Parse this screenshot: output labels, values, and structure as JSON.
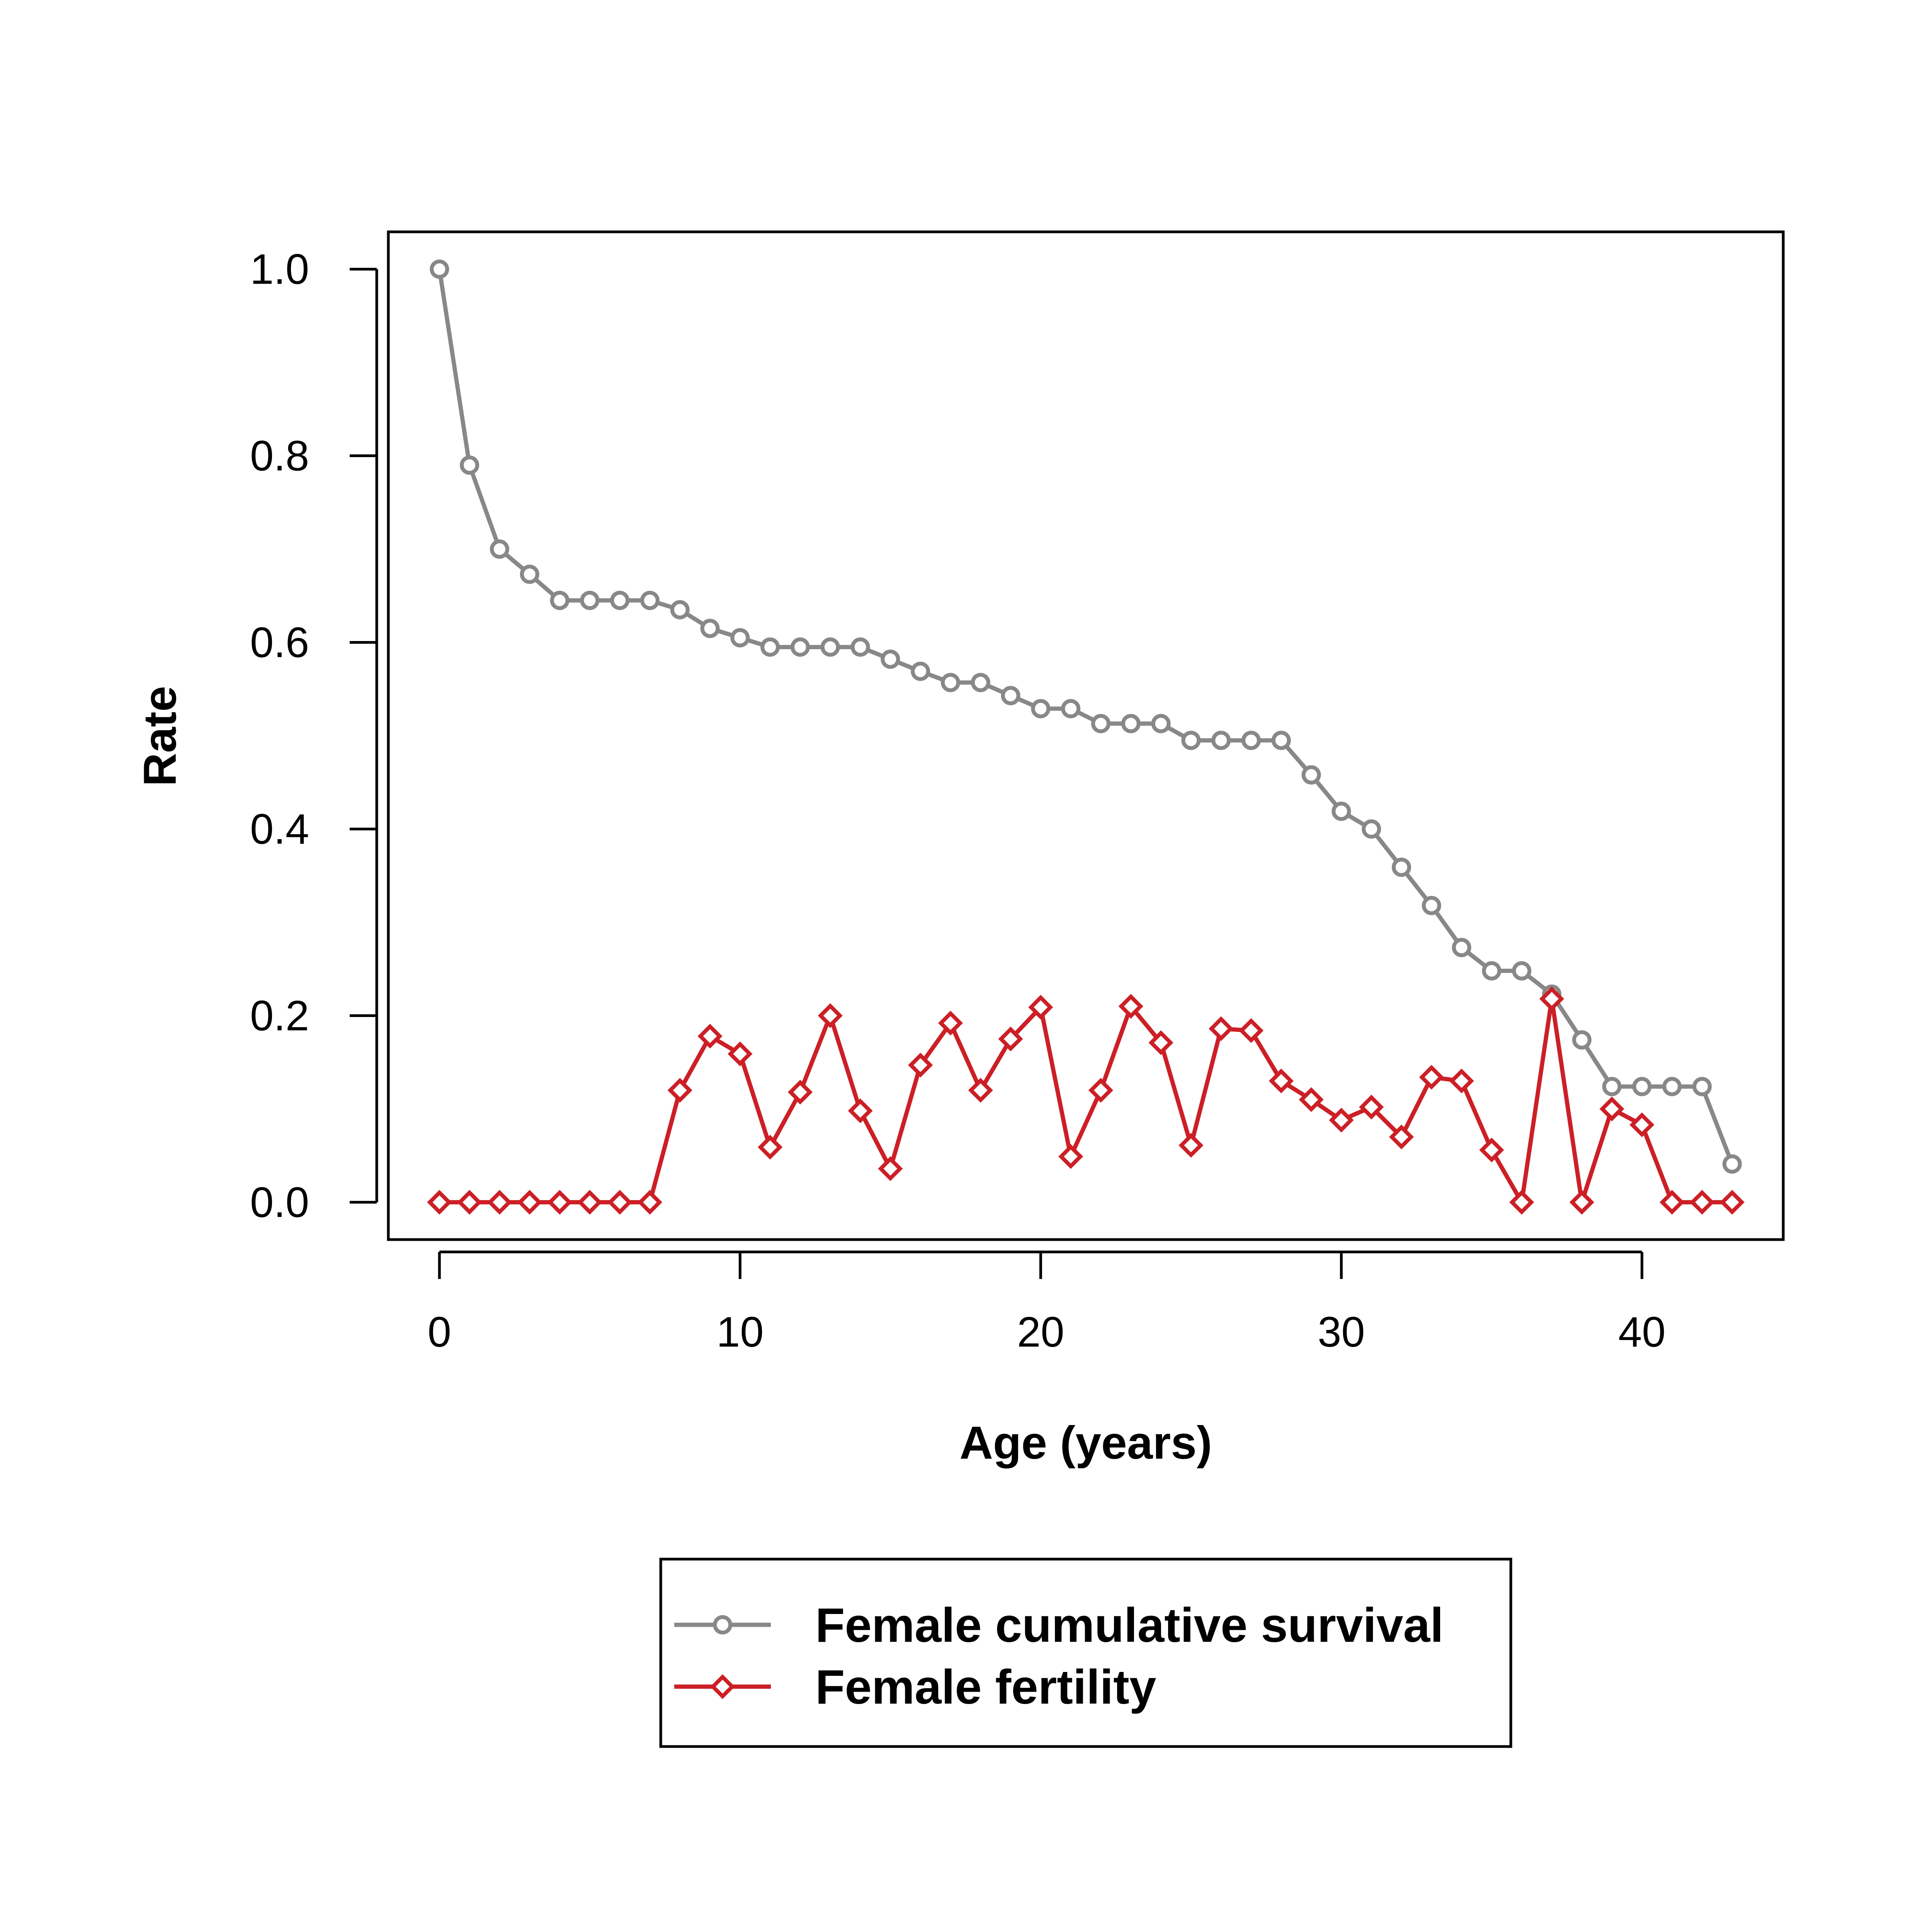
{
  "chart_data": {
    "type": "line",
    "xlabel": "Age (years)",
    "ylabel": "Rate",
    "xlim": [
      -1.7,
      44.7
    ],
    "ylim": [
      -0.04,
      1.04
    ],
    "xticks": [
      0,
      10,
      20,
      30,
      40
    ],
    "yticks": [
      0.0,
      0.2,
      0.4,
      0.6,
      0.8,
      1.0
    ],
    "ytick_labels": [
      "0.0",
      "0.2",
      "0.4",
      "0.6",
      "0.8",
      "1.0"
    ],
    "grid": false,
    "legend_position": "bottom-center",
    "x": [
      0,
      1,
      2,
      3,
      4,
      5,
      6,
      7,
      8,
      9,
      10,
      11,
      12,
      13,
      14,
      15,
      16,
      17,
      18,
      19,
      20,
      21,
      22,
      23,
      24,
      25,
      26,
      27,
      28,
      29,
      30,
      31,
      32,
      33,
      34,
      35,
      36,
      37,
      38,
      39,
      40,
      41,
      42,
      43
    ],
    "series": [
      {
        "name": "Female cumulative survival",
        "color": "#888888",
        "marker": "circle",
        "values": [
          1.0,
          0.79,
          0.7,
          0.673,
          0.645,
          0.645,
          0.645,
          0.645,
          0.635,
          0.615,
          0.605,
          0.595,
          0.595,
          0.595,
          0.595,
          0.582,
          0.569,
          0.557,
          0.557,
          0.543,
          0.529,
          0.529,
          0.513,
          0.513,
          0.513,
          0.495,
          0.495,
          0.495,
          0.495,
          0.458,
          0.419,
          0.4,
          0.359,
          0.318,
          0.273,
          0.248,
          0.248,
          0.223,
          0.174,
          0.124,
          0.124,
          0.124,
          0.124,
          0.041
        ]
      },
      {
        "name": "Female fertility",
        "color": "#cc1f26",
        "marker": "diamond",
        "values": [
          0,
          0,
          0,
          0,
          0,
          0,
          0,
          0,
          0.12,
          0.178,
          0.159,
          0.059,
          0.118,
          0.2,
          0.098,
          0.036,
          0.147,
          0.192,
          0.12,
          0.175,
          0.209,
          0.049,
          0.12,
          0.21,
          0.171,
          0.061,
          0.186,
          0.184,
          0.13,
          0.11,
          0.088,
          0.102,
          0.07,
          0.134,
          0.13,
          0.056,
          0,
          0.218,
          0,
          0.1,
          0.083,
          0,
          0,
          0
        ]
      }
    ]
  }
}
